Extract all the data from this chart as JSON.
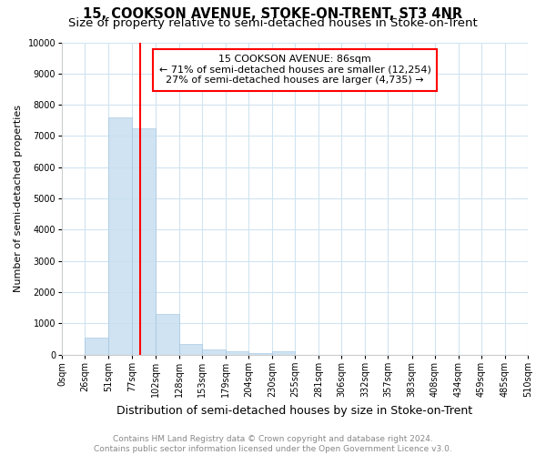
{
  "title": "15, COOKSON AVENUE, STOKE-ON-TRENT, ST3 4NR",
  "subtitle": "Size of property relative to semi-detached houses in Stoke-on-Trent",
  "xlabel": "Distribution of semi-detached houses by size in Stoke-on-Trent",
  "ylabel": "Number of semi-detached properties",
  "footer": "Contains HM Land Registry data © Crown copyright and database right 2024.\nContains public sector information licensed under the Open Government Licence v3.0.",
  "bin_edges": [
    0,
    25,
    51,
    77,
    102,
    128,
    153,
    179,
    204,
    230,
    255,
    281,
    306,
    332,
    357,
    383,
    408,
    434,
    459,
    485,
    510
  ],
  "bin_counts": [
    0,
    550,
    7600,
    7250,
    1300,
    340,
    170,
    100,
    50,
    100,
    0,
    0,
    0,
    0,
    0,
    0,
    0,
    0,
    0,
    0
  ],
  "bar_color": "#c8dff0",
  "bar_edgecolor": "#a0c4e0",
  "bar_alpha": 0.85,
  "vline_x": 86,
  "vline_color": "red",
  "annotation_text": "15 COOKSON AVENUE: 86sqm\n← 71% of semi-detached houses are smaller (12,254)\n27% of semi-detached houses are larger (4,735) →",
  "annotation_box_color": "white",
  "annotation_box_edgecolor": "red",
  "ylim": [
    0,
    10000
  ],
  "yticks": [
    0,
    1000,
    2000,
    3000,
    4000,
    5000,
    6000,
    7000,
    8000,
    9000,
    10000
  ],
  "xtick_labels": [
    "0sqm",
    "26sqm",
    "51sqm",
    "77sqm",
    "102sqm",
    "128sqm",
    "153sqm",
    "179sqm",
    "204sqm",
    "230sqm",
    "255sqm",
    "281sqm",
    "306sqm",
    "332sqm",
    "357sqm",
    "383sqm",
    "408sqm",
    "434sqm",
    "459sqm",
    "485sqm",
    "510sqm"
  ],
  "title_fontsize": 10.5,
  "subtitle_fontsize": 9.5,
  "xlabel_fontsize": 9,
  "ylabel_fontsize": 8,
  "tick_fontsize": 7,
  "footer_fontsize": 6.5,
  "annotation_fontsize": 8,
  "background_color": "#ffffff",
  "plot_bg_color": "#ffffff",
  "grid_color": "#d0e4f0"
}
